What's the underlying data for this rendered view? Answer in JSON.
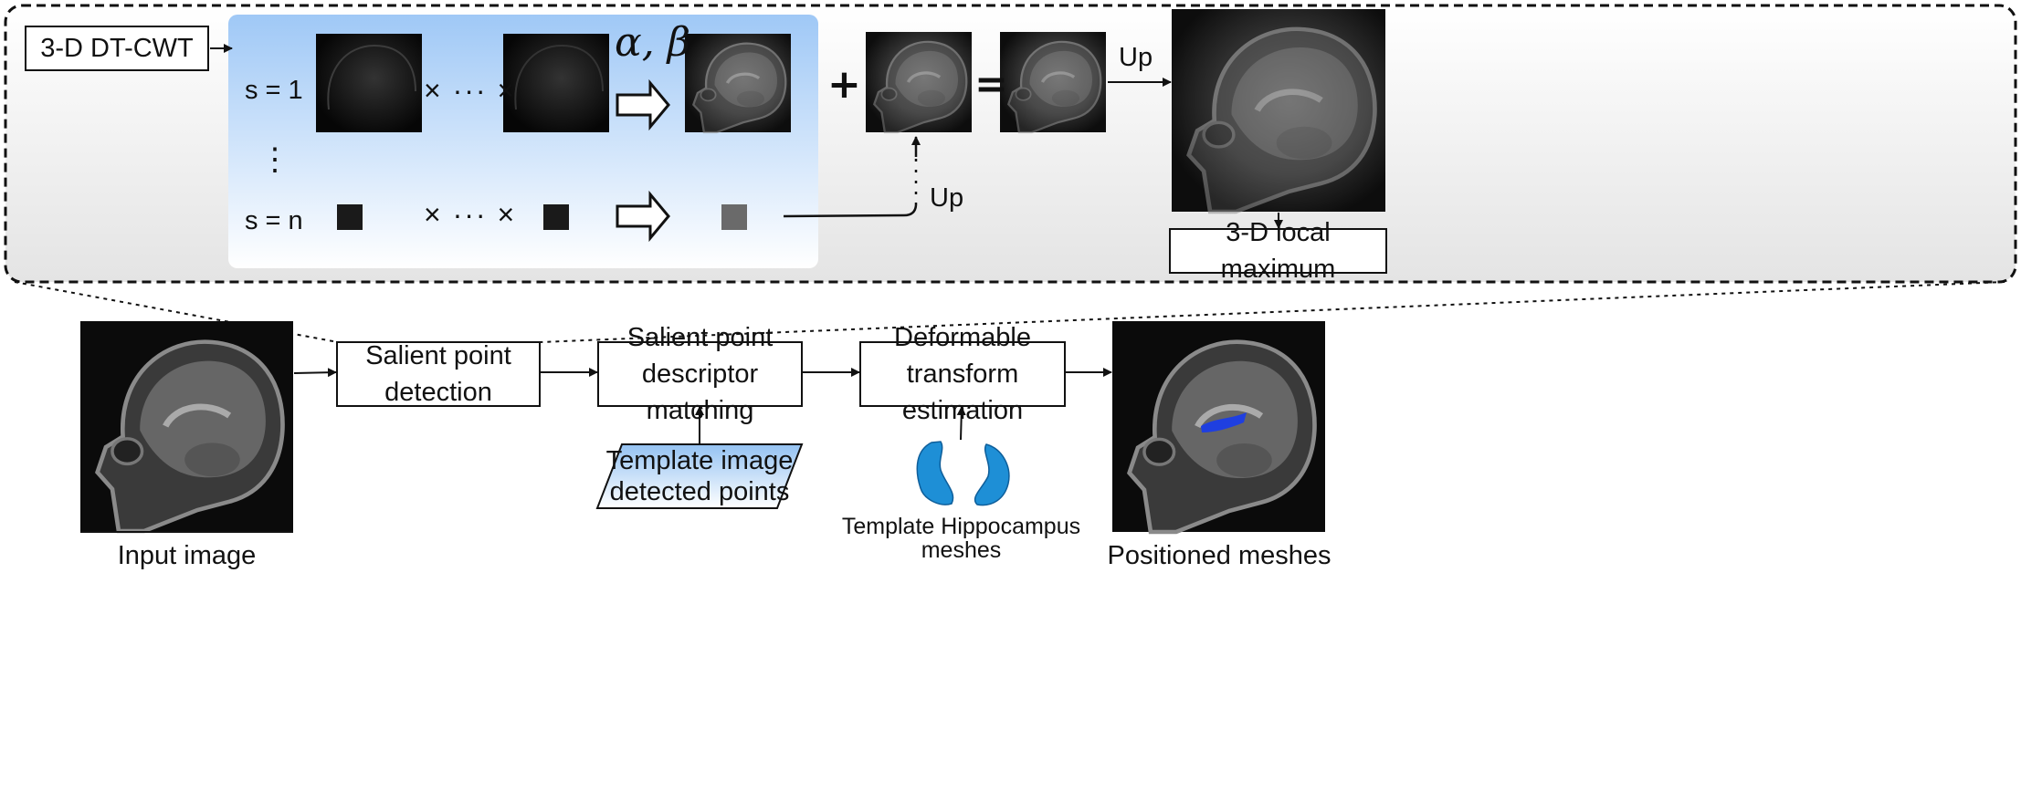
{
  "top_panel": {
    "dtcwt_label": "3-D DT-CWT",
    "scale_first": "s = 1",
    "vdots": "⋮",
    "scale_last": "s = n",
    "product_row1": "× ··· ×",
    "product_row2": "× ··· ×",
    "weights": "α, β",
    "plus": "+",
    "equals": "=",
    "up_top": "Up",
    "up_mid": "Up",
    "local_max_label": "3-D local maximum"
  },
  "pipeline": {
    "salient_detection": "Salient point\ndetection",
    "descriptor_matching": "Salient point\ndescriptor matching",
    "deformable_estimation": "Deformable\ntransform estimation",
    "template_points": "Template image\ndetected points"
  },
  "captions": {
    "input_image": "Input image",
    "template_meshes": "Template Hippocampus\nmeshes",
    "positioned_meshes": "Positioned meshes"
  },
  "colors": {
    "panel_gradient_top": "#ffffff",
    "panel_gradient_bottom": "#e6e6e6",
    "blue_panel_top": "#a8cdf8",
    "blue_panel_bottom": "#ffffff",
    "mesh_blue": "#1e8fd6",
    "positioned_blue": "#1f3fe0",
    "parallelogram_top": "#9fc8f3"
  }
}
